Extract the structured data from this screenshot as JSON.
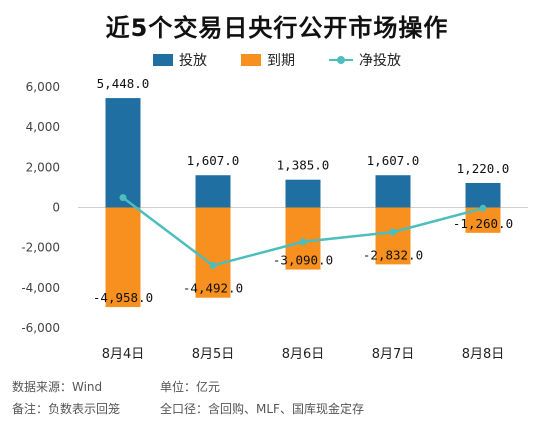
{
  "chart_data": {
    "type": "bar",
    "title": "近5个交易日央行公开市场操作",
    "categories": [
      "8月4日",
      "8月5日",
      "8月6日",
      "8月7日",
      "8月8日"
    ],
    "series": [
      {
        "name": "投放",
        "type": "bar",
        "color": "#1f6fa3",
        "values": [
          5448.0,
          1607.0,
          1385.0,
          1607.0,
          1220.0
        ],
        "labels": [
          "5,448.0",
          "1,607.0",
          "1,385.0",
          "1,607.0",
          "1,220.0"
        ]
      },
      {
        "name": "到期",
        "type": "bar",
        "color": "#f7901e",
        "values": [
          -4958.0,
          -4492.0,
          -3090.0,
          -2832.0,
          -1260.0
        ],
        "labels": [
          "-4,958.0",
          "-4,492.0",
          "-3,090.0",
          "-2,832.0",
          "-1,260.0"
        ]
      },
      {
        "name": "净投放",
        "type": "line",
        "color": "#4dbdbd",
        "values": [
          490.0,
          -2885.0,
          -1705.0,
          -1225.0,
          -40.0
        ]
      }
    ],
    "yticks": [
      6000,
      4000,
      2000,
      0,
      -2000,
      -4000,
      -6000
    ],
    "ytick_labels": [
      "6,000",
      "4,000",
      "2,000",
      "0",
      "-2,000",
      "-4,000",
      "-6,000"
    ],
    "ylim": [
      -6000,
      6000
    ],
    "legend_position": "top",
    "grid": false
  },
  "footer": {
    "source": "数据来源：Wind",
    "unit": "单位：亿元",
    "note": "备注：负数表示回笼",
    "scope": "全口径：含回购、MLF、国库现金定存"
  }
}
